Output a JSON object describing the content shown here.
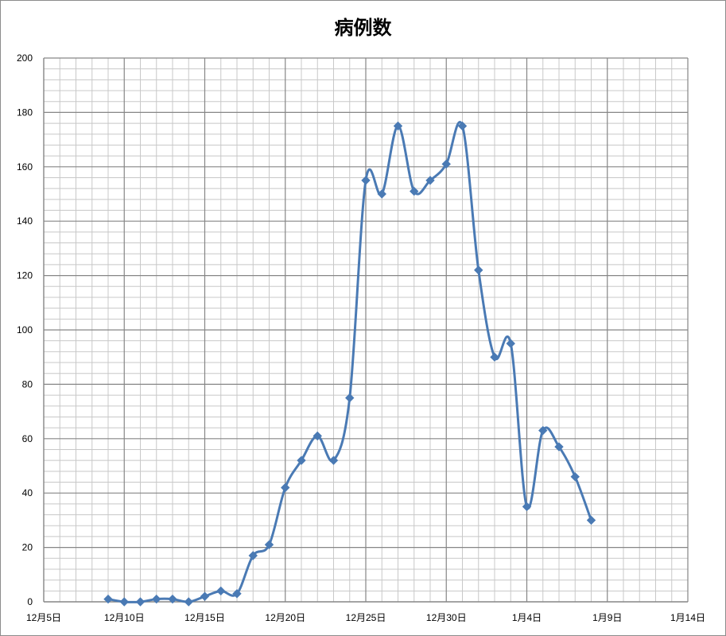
{
  "chart_data": {
    "type": "line",
    "title": "病例数",
    "xlabel": "",
    "ylabel": "",
    "x_tick_labels": [
      "12月5日",
      "12月10日",
      "12月15日",
      "12月20日",
      "12月25日",
      "12月30日",
      "1月4日",
      "1月9日",
      "1月14日"
    ],
    "y_tick_labels": [
      "0",
      "20",
      "40",
      "60",
      "80",
      "100",
      "120",
      "140",
      "160",
      "180",
      "200"
    ],
    "xlim_day_index": [
      0,
      40
    ],
    "ylim": [
      0,
      200
    ],
    "grid": true,
    "legend": "none",
    "series": [
      {
        "color": "#4a7ab4",
        "marker": "diamond",
        "smooth": true,
        "points": [
          {
            "date": "12月9日",
            "value": 1
          },
          {
            "date": "12月10日",
            "value": 0
          },
          {
            "date": "12月11日",
            "value": 0
          },
          {
            "date": "12月12日",
            "value": 1
          },
          {
            "date": "12月13日",
            "value": 1
          },
          {
            "date": "12月14日",
            "value": 0
          },
          {
            "date": "12月15日",
            "value": 2
          },
          {
            "date": "12月16日",
            "value": 4
          },
          {
            "date": "12月17日",
            "value": 3
          },
          {
            "date": "12月18日",
            "value": 17
          },
          {
            "date": "12月19日",
            "value": 21
          },
          {
            "date": "12月20日",
            "value": 42
          },
          {
            "date": "12月21日",
            "value": 52
          },
          {
            "date": "12月22日",
            "value": 61
          },
          {
            "date": "12月23日",
            "value": 52
          },
          {
            "date": "12月24日",
            "value": 75
          },
          {
            "date": "12月25日",
            "value": 155
          },
          {
            "date": "12月26日",
            "value": 150
          },
          {
            "date": "12月27日",
            "value": 175
          },
          {
            "date": "12月28日",
            "value": 151
          },
          {
            "date": "12月29日",
            "value": 155
          },
          {
            "date": "12月30日",
            "value": 161
          },
          {
            "date": "12月31日",
            "value": 175
          },
          {
            "date": "1月1日",
            "value": 122
          },
          {
            "date": "1月2日",
            "value": 90
          },
          {
            "date": "1月3日",
            "value": 95
          },
          {
            "date": "1月4日",
            "value": 35
          },
          {
            "date": "1月5日",
            "value": 63
          },
          {
            "date": "1月6日",
            "value": 57
          },
          {
            "date": "1月7日",
            "value": 46
          },
          {
            "date": "1月8日",
            "value": 30
          }
        ]
      }
    ],
    "colors": {
      "major_grid": "#868686",
      "minor_grid": "#c8c8c8",
      "axis": "#868686"
    }
  }
}
